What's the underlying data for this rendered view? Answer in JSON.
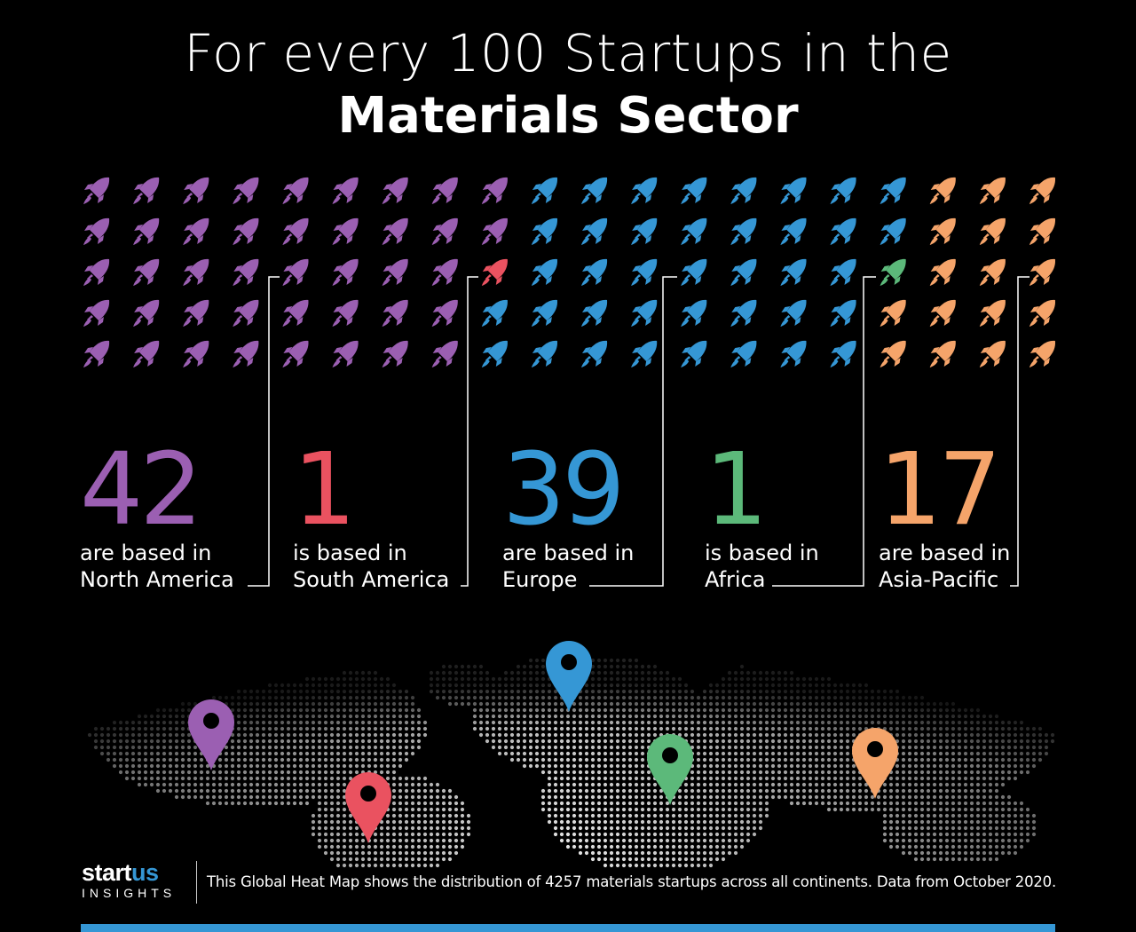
{
  "title": {
    "line1": "For every 100 Startups in the",
    "line2": "Materials Sector"
  },
  "colors": {
    "north_america": "#9b5fb2",
    "south_america": "#ea5260",
    "europe": "#3597d5",
    "africa": "#5cb97a",
    "asia_pacific": "#f5a46a",
    "bottom_bar": "#3597d5"
  },
  "icon_name": "rocket-icon",
  "regions": [
    {
      "key": "north_america",
      "count": 42,
      "number": "42",
      "line1": "are based in",
      "line2": "North America"
    },
    {
      "key": "south_america",
      "count": 1,
      "number": "1",
      "line1": "is based in",
      "line2": "South America"
    },
    {
      "key": "europe",
      "count": 39,
      "number": "39",
      "line1": "are based in",
      "line2": "Europe"
    },
    {
      "key": "africa",
      "count": 1,
      "number": "1",
      "line1": "is based in",
      "line2": "Africa"
    },
    {
      "key": "asia_pacific",
      "count": 17,
      "number": "17",
      "line1": "are based in",
      "line2": "Asia-Pacific"
    }
  ],
  "map_pins": [
    {
      "key": "north_america",
      "icon": "map-pin-icon"
    },
    {
      "key": "south_america",
      "icon": "map-pin-icon"
    },
    {
      "key": "europe",
      "icon": "map-pin-icon"
    },
    {
      "key": "africa",
      "icon": "map-pin-icon"
    },
    {
      "key": "asia_pacific",
      "icon": "map-pin-icon"
    }
  ],
  "footer": {
    "logo_start": "start",
    "logo_us": "us",
    "logo_sub": "INSIGHTS",
    "note": "This Global Heat Map shows the distribution of 4257 materials startups across all continents. Data from October 2020."
  }
}
